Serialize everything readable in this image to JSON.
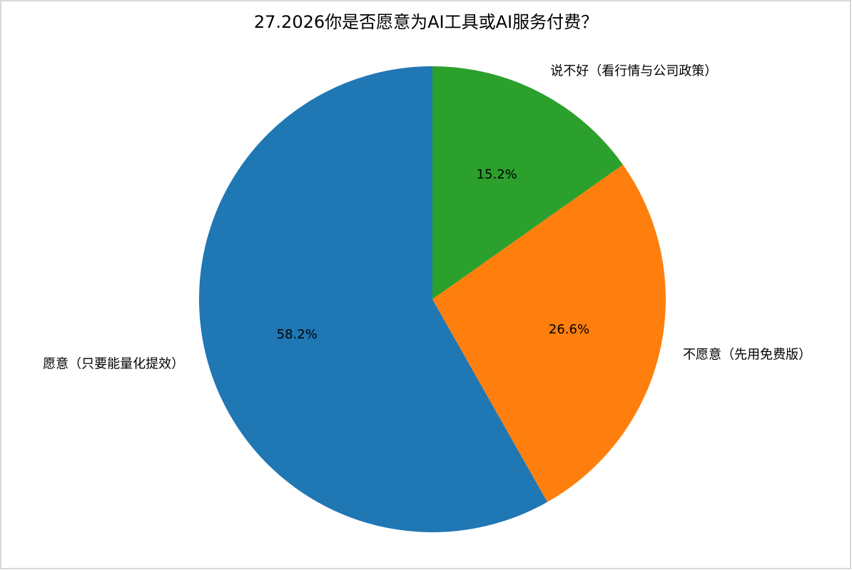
{
  "chart_data": {
    "type": "pie",
    "title": "27.2026你是否愿意为AI工具或AI服务付费？",
    "categories": [
      "愿意（只要能量化提效）",
      "不愿意（先用免费版）",
      "说不好（看行情与公司政策）"
    ],
    "values": [
      58.2,
      26.6,
      15.2
    ],
    "value_labels": [
      "58.2%",
      "26.6%",
      "15.2%"
    ],
    "colors": [
      "#1f77b4",
      "#ff7f0e",
      "#2ca02c"
    ]
  }
}
